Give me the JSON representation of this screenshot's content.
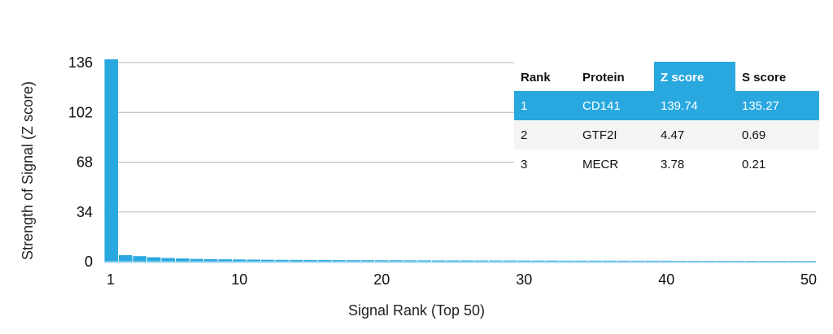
{
  "chart_data": {
    "type": "bar",
    "xlabel": "Signal Rank (Top 50)",
    "ylabel": "Strength of Signal (Z score)",
    "ylim": [
      0,
      136
    ],
    "yticks": [
      0,
      34,
      68,
      102,
      136
    ],
    "xticks": [
      1,
      10,
      20,
      30,
      40,
      50
    ],
    "grid": true,
    "bar_color": "#29a8e0",
    "x": [
      1,
      2,
      3,
      4,
      5,
      6,
      7,
      8,
      9,
      10,
      11,
      12,
      13,
      14,
      15,
      16,
      17,
      18,
      19,
      20,
      21,
      22,
      23,
      24,
      25,
      26,
      27,
      28,
      29,
      30,
      31,
      32,
      33,
      34,
      35,
      36,
      37,
      38,
      39,
      40,
      41,
      42,
      43,
      44,
      45,
      46,
      47,
      48,
      49,
      50
    ],
    "values": [
      139.74,
      4.47,
      3.78,
      3.0,
      2.5,
      2.2,
      1.9,
      1.7,
      1.6,
      1.5,
      1.4,
      1.3,
      1.25,
      1.2,
      1.15,
      1.1,
      1.05,
      1.0,
      1.0,
      0.95,
      0.95,
      0.9,
      0.9,
      0.85,
      0.85,
      0.85,
      0.8,
      0.8,
      0.8,
      0.75,
      0.75,
      0.75,
      0.7,
      0.7,
      0.7,
      0.7,
      0.65,
      0.65,
      0.65,
      0.65,
      0.6,
      0.6,
      0.6,
      0.6,
      0.6,
      0.55,
      0.55,
      0.55,
      0.55,
      0.55
    ]
  },
  "table": {
    "headers": [
      "Rank",
      "Protein",
      "Z score",
      "S score"
    ],
    "highlight_color": "#29a8e0",
    "rows": [
      [
        "1",
        "CD141",
        "139.74",
        "135.27"
      ],
      [
        "2",
        "GTF2I",
        "4.47",
        "0.69"
      ],
      [
        "3",
        "MECR",
        "3.78",
        "0.21"
      ]
    ]
  }
}
